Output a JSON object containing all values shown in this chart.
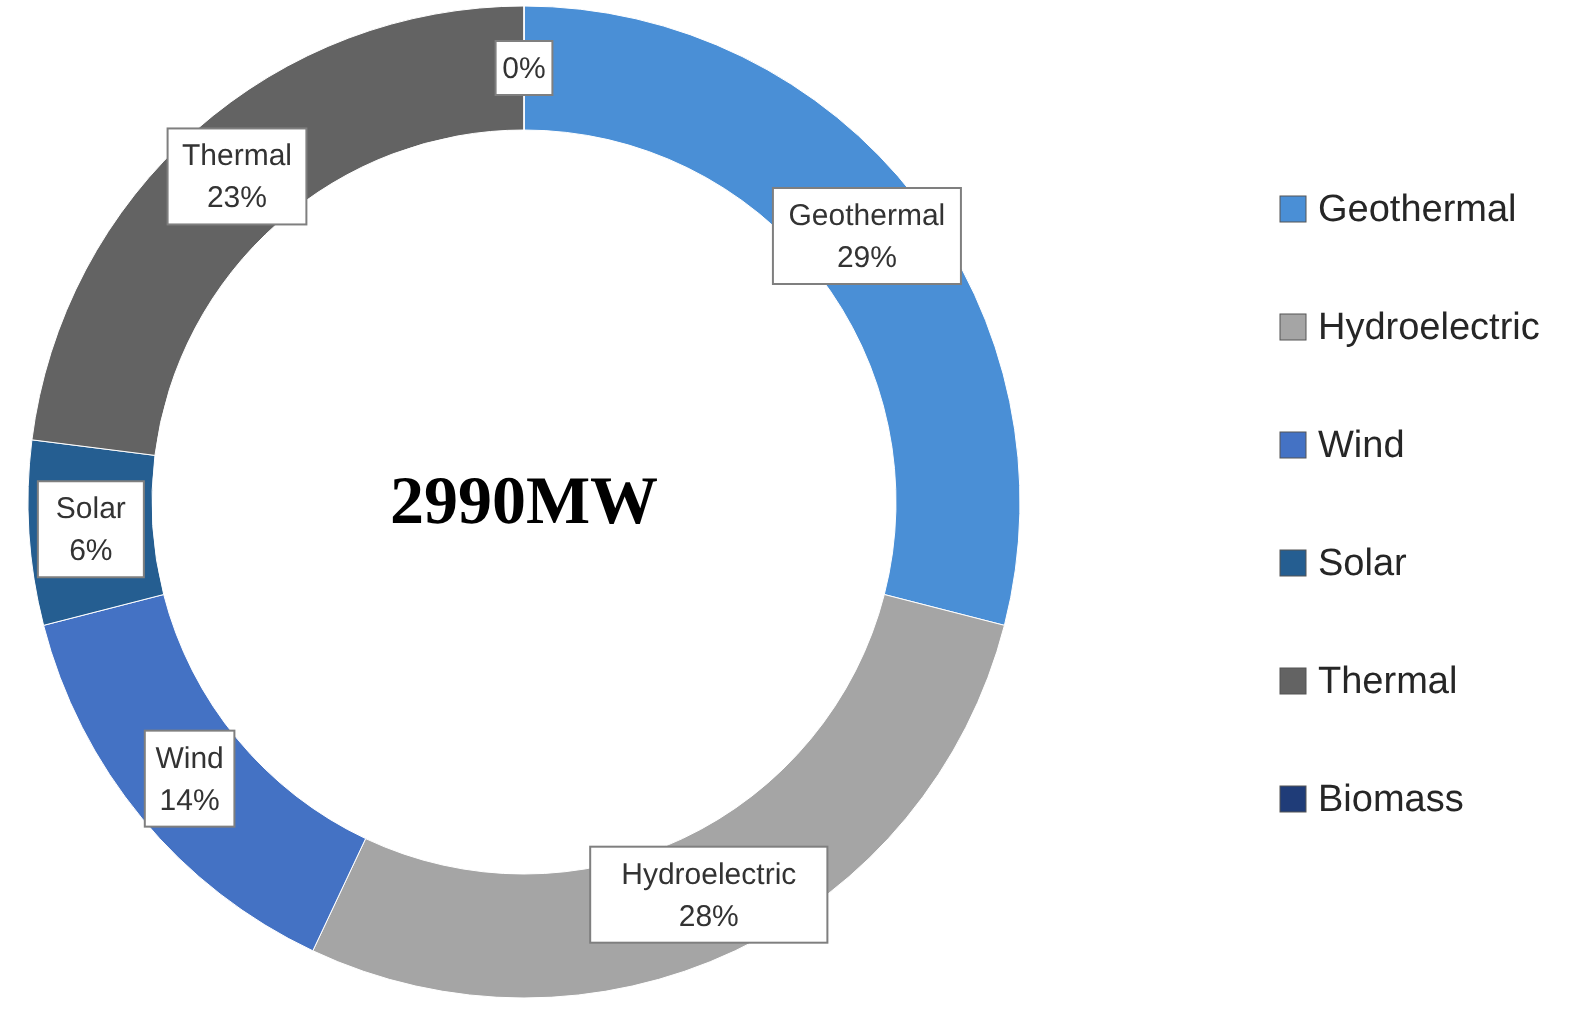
{
  "chart_data": {
    "type": "donut",
    "categories": [
      "Geothermal",
      "Hydroelectric",
      "Wind",
      "Solar",
      "Thermal",
      "Biomass"
    ],
    "values": [
      29,
      28,
      14,
      6,
      23,
      0
    ],
    "colors": [
      "#4a8fd6",
      "#a5a5a5",
      "#4472c4",
      "#255e91",
      "#636363",
      "#1f3c78"
    ],
    "value_labels": [
      "Geothermal\n29%",
      "Hydroelectric\n28%",
      "Wind\n14%",
      "Solar\n6%",
      "Thermal\n23%",
      "0%"
    ],
    "annotations": [
      "2990MW"
    ],
    "legend": "right"
  }
}
